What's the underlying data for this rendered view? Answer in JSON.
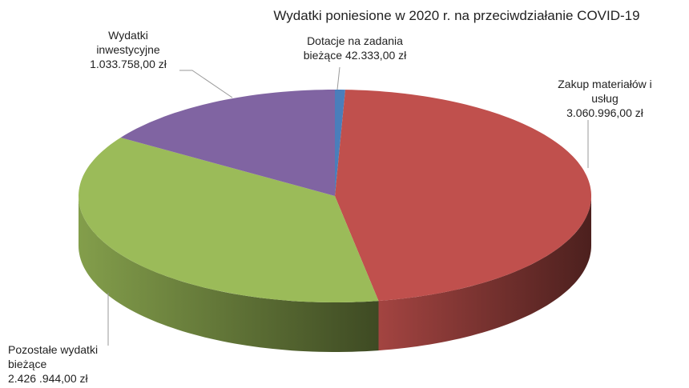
{
  "chart_data": {
    "type": "pie",
    "title": "Wydatki poniesione w 2020 r. na przeciwdziałanie COVID-19",
    "categories": [
      "Dotacje na zadania bieżące",
      "Zakup materiałów i usług",
      "Pozostałe wydatki bieżące",
      "Wydatki inwestycyjne"
    ],
    "values": [
      42333,
      3060996,
      2426944,
      1033758
    ],
    "value_labels": [
      "42.333,00 zł",
      "3.060.996,00 zł",
      "2.426 .944,00 zł",
      "1.033.758,00 zł"
    ],
    "colors": [
      "#4a7ebb",
      "#c0504d",
      "#9bbb59",
      "#8064a2"
    ]
  }
}
